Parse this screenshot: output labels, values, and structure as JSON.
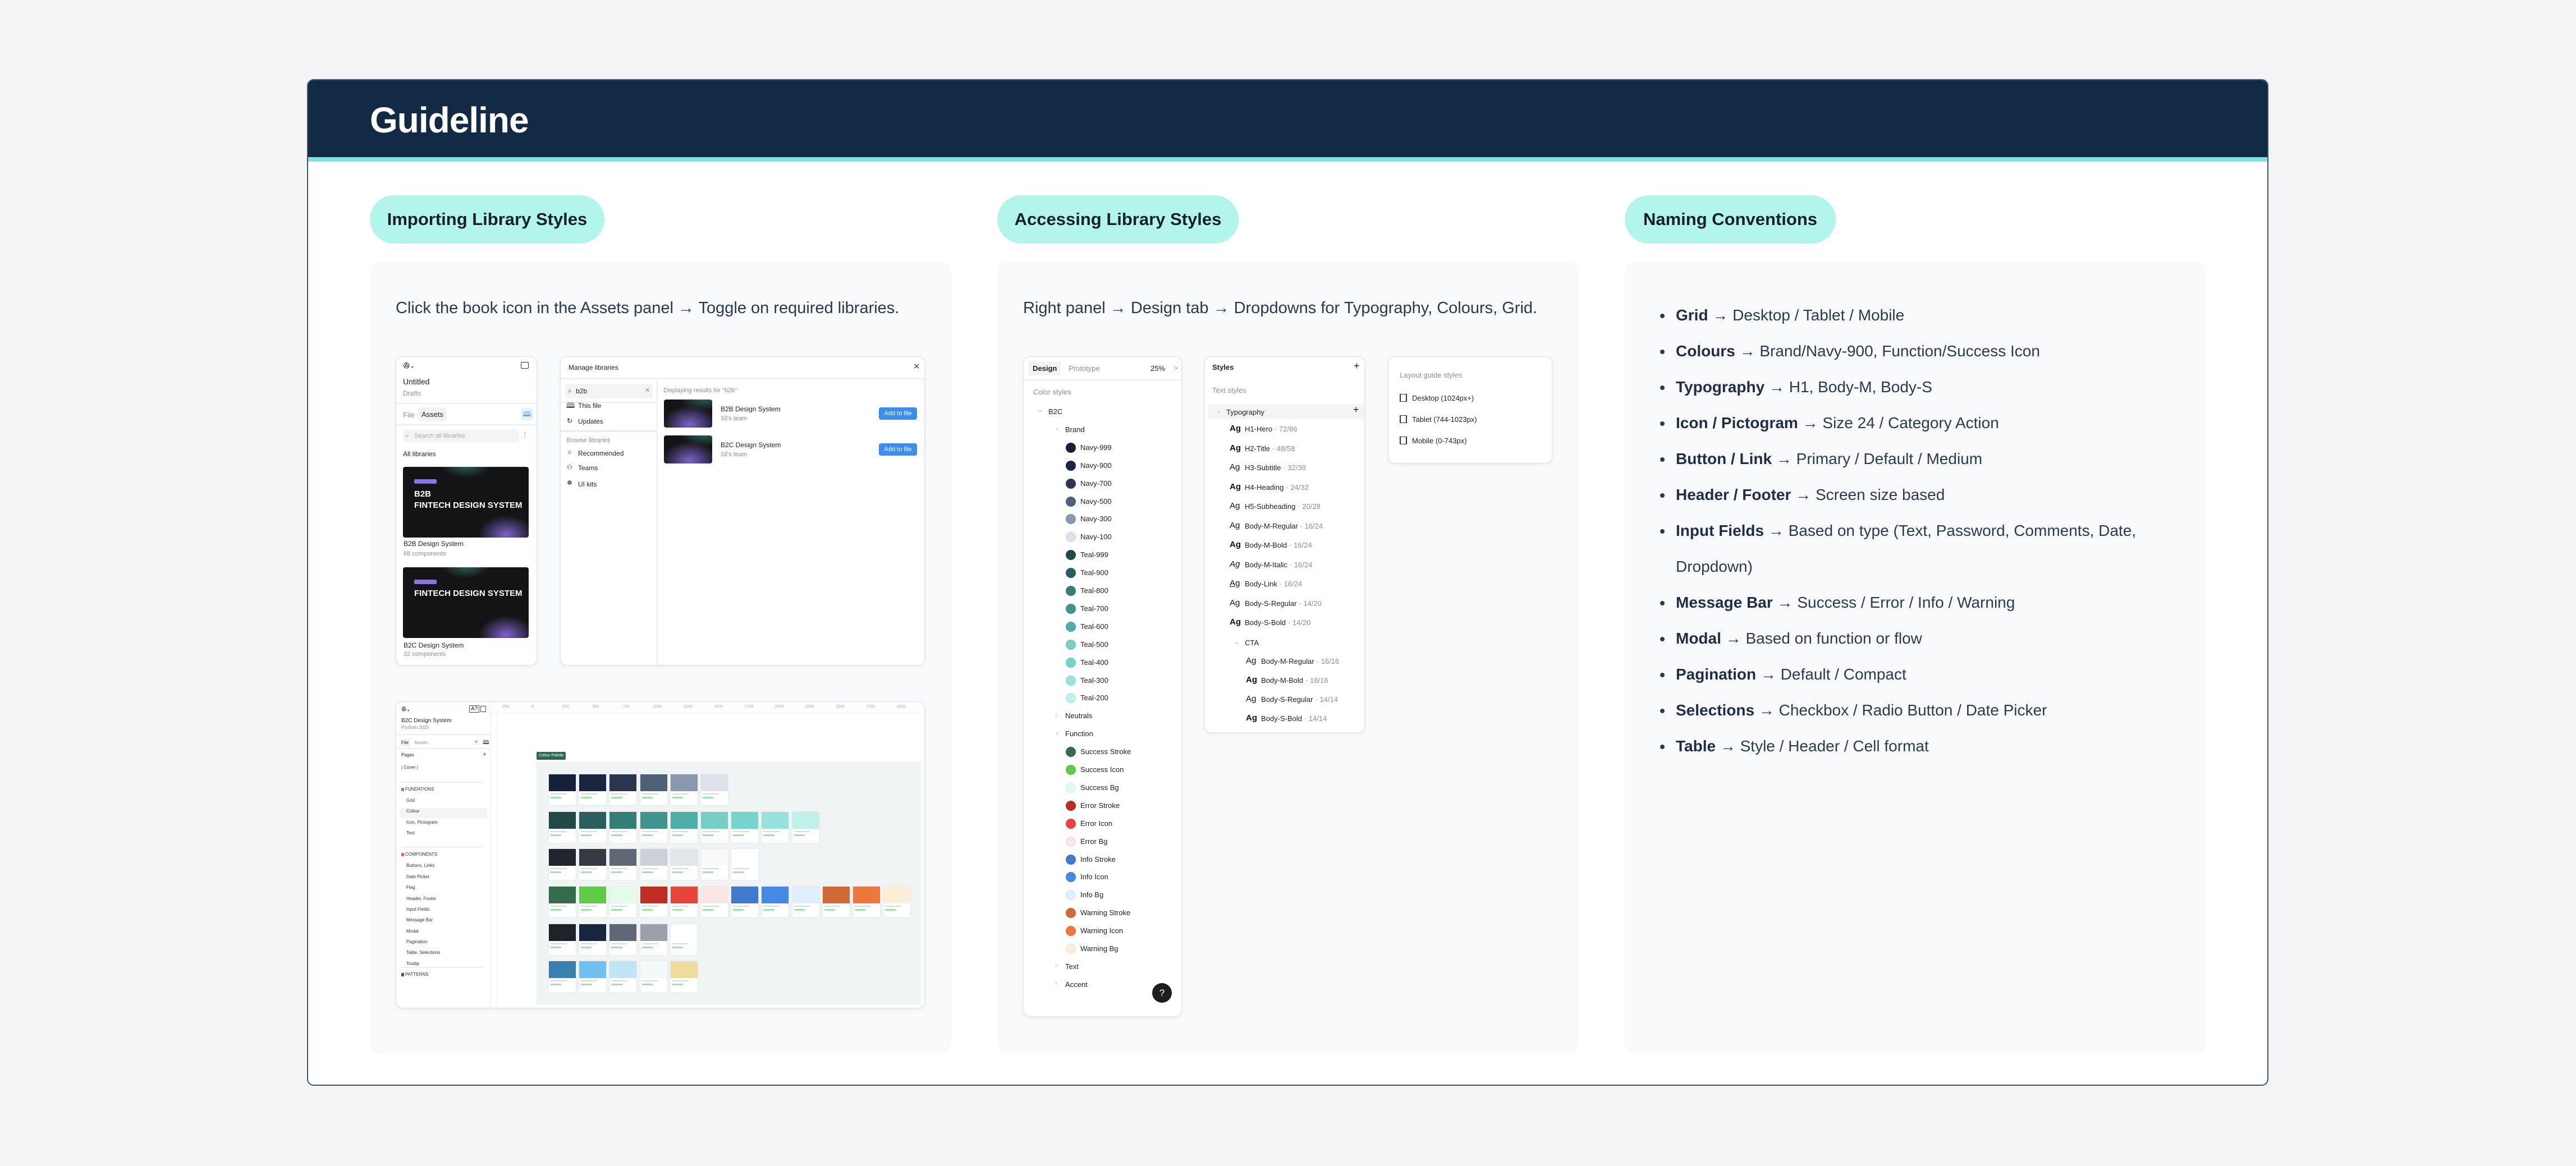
{
  "header": {
    "title": "Guideline"
  },
  "columns": [
    {
      "pill": "Importing Library Styles",
      "description": "Click the book icon in the Assets panel → Toggle on required libraries."
    },
    {
      "pill": "Accessing Library Styles",
      "description": "Right panel → Design tab → Dropdowns for Typography, Colours, Grid."
    },
    {
      "pill": "Naming Conventions"
    }
  ],
  "naming": [
    {
      "term": "Grid",
      "detail": "→ Desktop / Tablet / Mobile"
    },
    {
      "term": "Colours",
      "detail": "→ Brand/Navy-900, Function/Success Icon"
    },
    {
      "term": "Typography",
      "detail": "→ H1, Body-M, Body-S"
    },
    {
      "term": "Icon / Pictogram",
      "detail": "→ Size 24 / Category Action"
    },
    {
      "term": "Button / Link",
      "detail": "→ Primary / Default / Medium"
    },
    {
      "term": "Header / Footer",
      "detail": "→ Screen size based"
    },
    {
      "term": "Input Fields",
      "detail": "→ Based on type (Text, Password, Comments, Date, Dropdown)"
    },
    {
      "term": "Message Bar",
      "detail": "→ Success / Error / Info / Warning"
    },
    {
      "term": "Modal",
      "detail": "→ Based on function or flow"
    },
    {
      "term": "Pagination",
      "detail": "→ Default / Compact"
    },
    {
      "term": "Selections",
      "detail": "→ Checkbox / Radio Button / Date Picker"
    },
    {
      "term": "Table",
      "detail": "→ Style / Header / Cell format"
    }
  ],
  "assets_panel": {
    "file_name": "Untitled",
    "location": "Drafts",
    "tab_file": "File",
    "tab_assets": "Assets",
    "search_placeholder": "Search all libraries",
    "section": "All libraries",
    "libraries": [
      {
        "cover_sub": "B2B",
        "cover_title": "FINTECH DESIGN SYSTEM",
        "name": "B2B Design System",
        "count": "68 components"
      },
      {
        "cover_sub": "",
        "cover_title": "FINTECH DESIGN SYSTEM",
        "name": "B2C Design System",
        "count": "32 components"
      }
    ]
  },
  "manage_libraries": {
    "title": "Manage libraries",
    "search_value": "b2b",
    "nav": [
      "This file",
      "Updates"
    ],
    "browse_label": "Browse libraries",
    "browse": [
      "Recommended",
      "Teams",
      "UI kits"
    ],
    "results_label": "Displaying results for \"b2b\"",
    "results": [
      {
        "name": "B2B Design System",
        "team": "Sil's team",
        "button": "Add to file"
      },
      {
        "name": "B2C Design System",
        "team": "Sil's team",
        "button": "Add to file"
      }
    ]
  },
  "file_view": {
    "file_name": "B2C Design System",
    "project": "Portfolio 2025",
    "tab_file": "File",
    "tab_assets": "Assets",
    "pages_label": "Pages",
    "pages": [
      {
        "label": "| Cover |",
        "kind": "page"
      },
      {
        "label": "FUNDATIONS",
        "kind": "section"
      },
      {
        "label": "Grid",
        "kind": "page"
      },
      {
        "label": "Colour",
        "kind": "page",
        "selected": true
      },
      {
        "label": "Icon, Pictogram",
        "kind": "page"
      },
      {
        "label": "Text",
        "kind": "page"
      },
      {
        "label": "COMPONENTS",
        "kind": "section"
      },
      {
        "label": "Buttons, Links",
        "kind": "page"
      },
      {
        "label": "Date Picker",
        "kind": "page"
      },
      {
        "label": "Flag",
        "kind": "page"
      },
      {
        "label": "Header, Footer",
        "kind": "page"
      },
      {
        "label": "Input Fields",
        "kind": "page"
      },
      {
        "label": "Message Bar",
        "kind": "page"
      },
      {
        "label": "Modal",
        "kind": "page"
      },
      {
        "label": "Pagination",
        "kind": "page"
      },
      {
        "label": "Table, Selections",
        "kind": "page"
      },
      {
        "label": "Tooltip",
        "kind": "page"
      },
      {
        "label": "PATTERNS",
        "kind": "section"
      }
    ],
    "ruler": [
      "-250",
      "0",
      "250",
      "500",
      "750",
      "1000",
      "1250",
      "1500",
      "1750",
      "2000",
      "2250",
      "2500",
      "2750",
      "3000"
    ],
    "frame_label": "Colour Palette",
    "swatch_rows": [
      [
        "#15213a",
        "#182640",
        "#28364f",
        "#4f6079",
        "#8a98ad",
        "#dde2ea"
      ],
      [
        "#214945",
        "#285f5b",
        "#357d77",
        "#3f958e",
        "#4daea6",
        "#76cfc5",
        "#74d5cc",
        "#97e2db",
        "#c0f1e8"
      ],
      [
        "#20252d",
        "#343b44",
        "#5f6874",
        "#cdd1d7",
        "#e3e6e9",
        "#f8f9fa",
        "#ffffff"
      ],
      [
        "#346b48",
        "#5fcb48",
        "#e3fbe9",
        "#bf2c22",
        "#e9443b",
        "#fbe6e6",
        "#3f7acc",
        "#4688e8",
        "#e0effc",
        "#d26a37",
        "#ee783c",
        "#faeed8"
      ],
      [
        "#1e2128",
        "#162640",
        "#5f6874",
        "#9aa1ab",
        "#ffffff"
      ],
      [
        "#3880ae",
        "#6fbff0",
        "#c0e6f4",
        "#f4faf9",
        "#efdd9f"
      ]
    ]
  },
  "design_panel": {
    "tab_design": "Design",
    "tab_prototype": "Prototype",
    "zoom": "25%",
    "section": "Color styles",
    "tree": [
      {
        "label": "B2C",
        "level": 0,
        "open": true
      },
      {
        "label": "Brand",
        "level": 1,
        "open": true
      },
      {
        "label": "Navy-999",
        "color": "#15213a"
      },
      {
        "label": "Navy-900",
        "color": "#182640"
      },
      {
        "label": "Navy-700",
        "color": "#28364f"
      },
      {
        "label": "Navy-500",
        "color": "#4f6079"
      },
      {
        "label": "Navy-300",
        "color": "#8a98ad"
      },
      {
        "label": "Navy-100",
        "color": "#dde2ea"
      },
      {
        "label": "Teal-999",
        "color": "#214945"
      },
      {
        "label": "Teal-900",
        "color": "#285f5b"
      },
      {
        "label": "Teal-800",
        "color": "#357d77"
      },
      {
        "label": "Teal-700",
        "color": "#3f958e"
      },
      {
        "label": "Teal-600",
        "color": "#4daea6"
      },
      {
        "label": "Teal-500",
        "color": "#76cfc5"
      },
      {
        "label": "Teal-400",
        "color": "#74d5cc"
      },
      {
        "label": "Teal-300",
        "color": "#97e2db"
      },
      {
        "label": "Teal-200",
        "color": "#c0f1e8"
      },
      {
        "label": "Neutrals",
        "level": 1,
        "open": false
      },
      {
        "label": "Function",
        "level": 1,
        "open": true
      },
      {
        "label": "Success Stroke",
        "color": "#346b48"
      },
      {
        "label": "Success Icon",
        "color": "#5fcb48"
      },
      {
        "label": "Success Bg",
        "color": "#e3fbe9"
      },
      {
        "label": "Error Stroke",
        "color": "#bf2c22"
      },
      {
        "label": "Error Icon",
        "color": "#e9443b"
      },
      {
        "label": "Error Bg",
        "color": "#fbe6e6"
      },
      {
        "label": "Info Stroke",
        "color": "#3f7acc"
      },
      {
        "label": "Info Icon",
        "color": "#4688e8"
      },
      {
        "label": "Info Bg",
        "color": "#e0effc"
      },
      {
        "label": "Warning Stroke",
        "color": "#d26a37"
      },
      {
        "label": "Warning Icon",
        "color": "#ee783c"
      },
      {
        "label": "Warning Bg",
        "color": "#faeed8"
      },
      {
        "label": "Text",
        "level": 1,
        "open": false
      },
      {
        "label": "Accent",
        "level": 1,
        "open": false
      }
    ],
    "help": "?"
  },
  "styles_panel": {
    "title": "Styles",
    "section": "Text styles",
    "group": "Typography",
    "glyph": "Ag",
    "styles": [
      {
        "name": "H1-Hero",
        "spec": "· 72/86",
        "weight": "bold"
      },
      {
        "name": "H2-Title",
        "spec": "· 48/58",
        "weight": "bold"
      },
      {
        "name": "H3-Subtitle",
        "spec": "· 32/38",
        "weight": "normal"
      },
      {
        "name": "H4-Heading",
        "spec": "· 24/32",
        "weight": "bold"
      },
      {
        "name": "H5-Subheading",
        "spec": "· 20/28",
        "weight": "normal"
      },
      {
        "name": "Body-M-Regular",
        "spec": "· 16/24",
        "weight": "normal"
      },
      {
        "name": "Body-M-Bold",
        "spec": "· 16/24",
        "weight": "bold"
      },
      {
        "name": "Body-M-Italic",
        "spec": "· 16/24",
        "weight": "italic"
      },
      {
        "name": "Body-Link",
        "spec": "· 16/24",
        "weight": "underline"
      },
      {
        "name": "Body-S-Regular",
        "spec": "· 14/20",
        "weight": "normal"
      },
      {
        "name": "Body-S-Bold",
        "spec": "· 14/20",
        "weight": "bold"
      }
    ],
    "subgroup": "CTA",
    "cta_styles": [
      {
        "name": "Body-M-Regular",
        "spec": "· 16/16",
        "weight": "normal"
      },
      {
        "name": "Body-M-Bold",
        "spec": "· 16/16",
        "weight": "bold"
      },
      {
        "name": "Body-S-Regular",
        "spec": "· 14/14",
        "weight": "normal"
      },
      {
        "name": "Body-S-Bold",
        "spec": "· 14/14",
        "weight": "bold"
      }
    ]
  },
  "layout_guides": {
    "title": "Layout guide styles",
    "items": [
      "Desktop (1024px+)",
      "Tablet (744-1023px)",
      "Mobile (0-743px)"
    ]
  },
  "colors": {
    "header_bg": "#132a45",
    "accent_line": "#7de3dd",
    "pill_bg": "#b2f5ea",
    "button_blue": "#3b8ef0"
  }
}
